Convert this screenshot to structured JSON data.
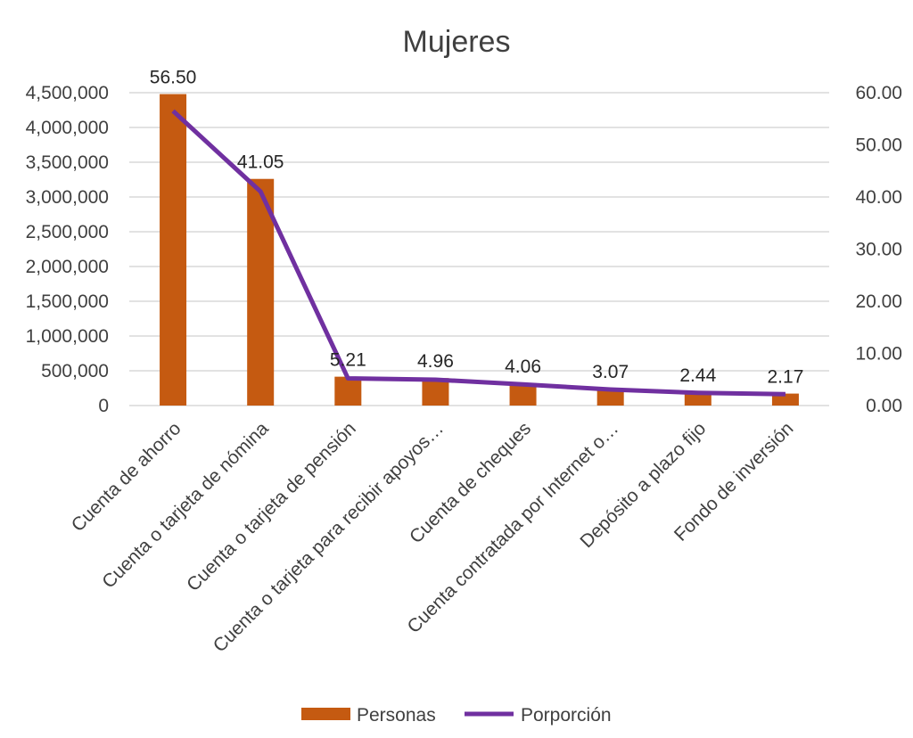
{
  "chart_data": {
    "type": "bar+line",
    "title": "Mujeres",
    "categories": [
      "Cuenta de ahorro",
      "Cuenta o tarjeta de nómina",
      "Cuenta o tarjeta de pensión",
      "Cuenta o tarjeta para recibir apoyos…",
      "Cuenta de cheques",
      "Cuenta contratada por Internet o…",
      "Depósito a plazo fijo",
      "Fondo de inversión"
    ],
    "series": [
      {
        "name": "Personas",
        "type": "bar",
        "axis": "left",
        "color": "#c55a11",
        "values": [
          4480000,
          3260000,
          415000,
          395000,
          322000,
          244000,
          194000,
          172000
        ]
      },
      {
        "name": "Porporción",
        "type": "line",
        "axis": "right",
        "color": "#7030a0",
        "values": [
          56.5,
          41.05,
          5.21,
          4.96,
          4.06,
          3.07,
          2.44,
          2.17
        ],
        "data_labels": [
          "56.50",
          "41.05",
          "5.21",
          "4.96",
          "4.06",
          "3.07",
          "2.44",
          "2.17"
        ]
      }
    ],
    "y_left": {
      "range": [
        0,
        4500000
      ],
      "ticks": [
        0,
        500000,
        1000000,
        1500000,
        2000000,
        2500000,
        3000000,
        3500000,
        4000000,
        4500000
      ],
      "tick_labels": [
        "0",
        "500,000",
        "1,000,000",
        "1,500,000",
        "2,000,000",
        "2,500,000",
        "3,000,000",
        "3,500,000",
        "4,000,000",
        "4,500,000"
      ]
    },
    "y_right": {
      "range": [
        0,
        60
      ],
      "ticks": [
        0,
        10,
        20,
        30,
        40,
        50,
        60
      ],
      "tick_labels": [
        "0.00",
        "10.00",
        "20.00",
        "30.00",
        "40.00",
        "50.00",
        "60.00"
      ]
    },
    "grid": true,
    "legend": {
      "position": "bottom",
      "entries": [
        "Personas",
        "Porporción"
      ]
    }
  }
}
